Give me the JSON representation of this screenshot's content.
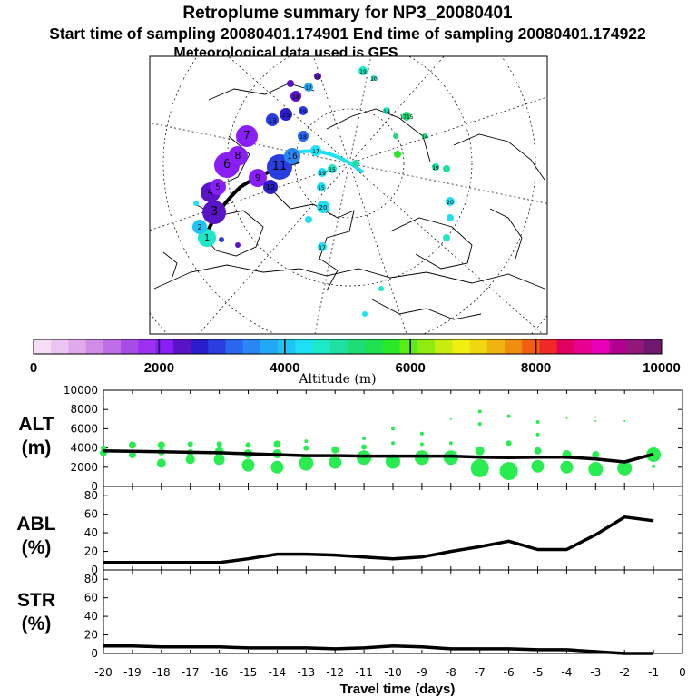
{
  "title": {
    "line1": "Retroplume summary for NP3_20080401",
    "line2": "Start time of sampling 20080401.174901     End time of sampling 20080401.174922",
    "line3": "Meteorological data used is GFS"
  },
  "colorbar": {
    "label": "Altitude (m)",
    "ticks": [
      "0",
      "2000",
      "4000",
      "6000",
      "8000",
      "10000"
    ],
    "colors": [
      "#f5ddf5",
      "#ebc4ef",
      "#e0a9ea",
      "#d08ce6",
      "#bf6de6",
      "#a84ce8",
      "#9b30f0",
      "#8a1ef8",
      "#5a14c8",
      "#2a1ecc",
      "#2a3ee0",
      "#2a66f0",
      "#2a86f2",
      "#22a8f4",
      "#1ec4f4",
      "#1ee0f4",
      "#1ee8c8",
      "#1ee0a0",
      "#1edc78",
      "#1ee050",
      "#28e828",
      "#58ec18",
      "#90ec10",
      "#c8ec10",
      "#f0f010",
      "#f0d810",
      "#f0b410",
      "#f08c10",
      "#f06010",
      "#f02828",
      "#e00060",
      "#e80090",
      "#e800b8",
      "#b00090",
      "#901878",
      "#701870"
    ]
  },
  "map": {
    "labels": [
      "1",
      "2",
      "3",
      "4",
      "5",
      "6",
      "7",
      "8",
      "9",
      "10",
      "11",
      "12",
      "13",
      "14",
      "15",
      "16",
      "17",
      "18",
      "19",
      "20"
    ]
  },
  "chart_data": [
    {
      "type": "line",
      "panel": "ALT",
      "ylabel": "ALT (m)",
      "ylim": [
        0,
        10000
      ],
      "yticks": [
        0,
        2000,
        4000,
        6000,
        8000,
        10000
      ],
      "x": [
        -20,
        -19,
        -18,
        -17,
        -16,
        -15,
        -14,
        -13,
        -12,
        -11,
        -10,
        -9,
        -8,
        -7,
        -6,
        -5,
        -4,
        -3,
        -2,
        -1
      ],
      "values": [
        3700,
        3650,
        3600,
        3550,
        3500,
        3400,
        3300,
        3200,
        3200,
        3150,
        3150,
        3150,
        3150,
        3050,
        3000,
        3050,
        3050,
        2850,
        2550,
        3350
      ],
      "scatter": [
        {
          "x": -20,
          "y": 3500,
          "s": 4
        },
        {
          "x": -20,
          "y": 4000,
          "s": 3
        },
        {
          "x": -19,
          "y": 3300,
          "s": 4
        },
        {
          "x": -19,
          "y": 4300,
          "s": 4
        },
        {
          "x": -18,
          "y": 2400,
          "s": 5
        },
        {
          "x": -18,
          "y": 3600,
          "s": 4
        },
        {
          "x": -18,
          "y": 4300,
          "s": 4
        },
        {
          "x": -17,
          "y": 2800,
          "s": 5
        },
        {
          "x": -17,
          "y": 3500,
          "s": 4
        },
        {
          "x": -17,
          "y": 4400,
          "s": 3
        },
        {
          "x": -16,
          "y": 2800,
          "s": 6
        },
        {
          "x": -16,
          "y": 3600,
          "s": 5
        },
        {
          "x": -16,
          "y": 4400,
          "s": 3
        },
        {
          "x": -15,
          "y": 2200,
          "s": 7
        },
        {
          "x": -15,
          "y": 3400,
          "s": 5
        },
        {
          "x": -15,
          "y": 4300,
          "s": 3
        },
        {
          "x": -14,
          "y": 2000,
          "s": 7
        },
        {
          "x": -14,
          "y": 3400,
          "s": 5
        },
        {
          "x": -14,
          "y": 4400,
          "s": 4
        },
        {
          "x": -13,
          "y": 2400,
          "s": 8
        },
        {
          "x": -13,
          "y": 4000,
          "s": 3
        },
        {
          "x": -13,
          "y": 4700,
          "s": 2
        },
        {
          "x": -12,
          "y": 2500,
          "s": 7
        },
        {
          "x": -12,
          "y": 3800,
          "s": 4
        },
        {
          "x": -11,
          "y": 3000,
          "s": 8
        },
        {
          "x": -11,
          "y": 4100,
          "s": 3
        },
        {
          "x": -11,
          "y": 5000,
          "s": 2
        },
        {
          "x": -10,
          "y": 2600,
          "s": 8
        },
        {
          "x": -10,
          "y": 4500,
          "s": 2
        },
        {
          "x": -10,
          "y": 6000,
          "s": 2
        },
        {
          "x": -9,
          "y": 3000,
          "s": 8
        },
        {
          "x": -9,
          "y": 4400,
          "s": 2
        },
        {
          "x": -9,
          "y": 5500,
          "s": 2
        },
        {
          "x": -8,
          "y": 3000,
          "s": 8
        },
        {
          "x": -8,
          "y": 4500,
          "s": 2
        },
        {
          "x": -8,
          "y": 7000,
          "s": 1
        },
        {
          "x": -7,
          "y": 1900,
          "s": 10
        },
        {
          "x": -7,
          "y": 3700,
          "s": 5
        },
        {
          "x": -7,
          "y": 6500,
          "s": 2
        },
        {
          "x": -7,
          "y": 7800,
          "s": 2
        },
        {
          "x": -6,
          "y": 1600,
          "s": 10
        },
        {
          "x": -6,
          "y": 4500,
          "s": 3
        },
        {
          "x": -6,
          "y": 7300,
          "s": 2
        },
        {
          "x": -5,
          "y": 2100,
          "s": 7
        },
        {
          "x": -5,
          "y": 3700,
          "s": 4
        },
        {
          "x": -5,
          "y": 5400,
          "s": 2
        },
        {
          "x": -5,
          "y": 6700,
          "s": 2
        },
        {
          "x": -4,
          "y": 2000,
          "s": 7
        },
        {
          "x": -4,
          "y": 3300,
          "s": 5
        },
        {
          "x": -4,
          "y": 7100,
          "s": 1
        },
        {
          "x": -3,
          "y": 1800,
          "s": 8
        },
        {
          "x": -3,
          "y": 3300,
          "s": 4
        },
        {
          "x": -3,
          "y": 6800,
          "s": 1
        },
        {
          "x": -3,
          "y": 7200,
          "s": 1
        },
        {
          "x": -2,
          "y": 1900,
          "s": 8
        },
        {
          "x": -2,
          "y": 6800,
          "s": 1
        },
        {
          "x": -1,
          "y": 3300,
          "s": 8
        },
        {
          "x": -1,
          "y": 2100,
          "s": 2
        }
      ]
    },
    {
      "type": "line",
      "panel": "ABL",
      "ylabel": "ABL (%)",
      "ylim": [
        0,
        90
      ],
      "yticks": [
        0,
        20,
        40,
        60,
        80
      ],
      "x": [
        -20,
        -19,
        -18,
        -17,
        -16,
        -15,
        -14,
        -13,
        -12,
        -11,
        -10,
        -9,
        -8,
        -7,
        -6,
        -5,
        -4,
        -3,
        -2,
        -1
      ],
      "values": [
        8,
        8,
        8,
        8,
        8,
        12,
        17,
        17,
        16,
        14,
        12,
        14,
        20,
        25,
        31,
        22,
        22,
        38,
        57,
        53
      ]
    },
    {
      "type": "line",
      "panel": "STR",
      "ylabel": "STR (%)",
      "ylim": [
        0,
        90
      ],
      "yticks": [
        0,
        20,
        40,
        60,
        80
      ],
      "x": [
        -20,
        -19,
        -18,
        -17,
        -16,
        -15,
        -14,
        -13,
        -12,
        -11,
        -10,
        -9,
        -8,
        -7,
        -6,
        -5,
        -4,
        -3,
        -2,
        -1
      ],
      "values": [
        8,
        8,
        7,
        7,
        7,
        6,
        6,
        6,
        5,
        6,
        8,
        7,
        5,
        5,
        5,
        4,
        4,
        2,
        0,
        0
      ],
      "xlabel": "Travel time (days)",
      "xticks": [
        "-20",
        "-19",
        "-18",
        "-17",
        "-16",
        "-15",
        "-14",
        "-13",
        "-12",
        "-11",
        "-10",
        "-9",
        "-8",
        "-7",
        "-6",
        "-5",
        "-4",
        "-3",
        "-2",
        "-1",
        "0"
      ],
      "xlim": [
        -20,
        0
      ]
    }
  ]
}
